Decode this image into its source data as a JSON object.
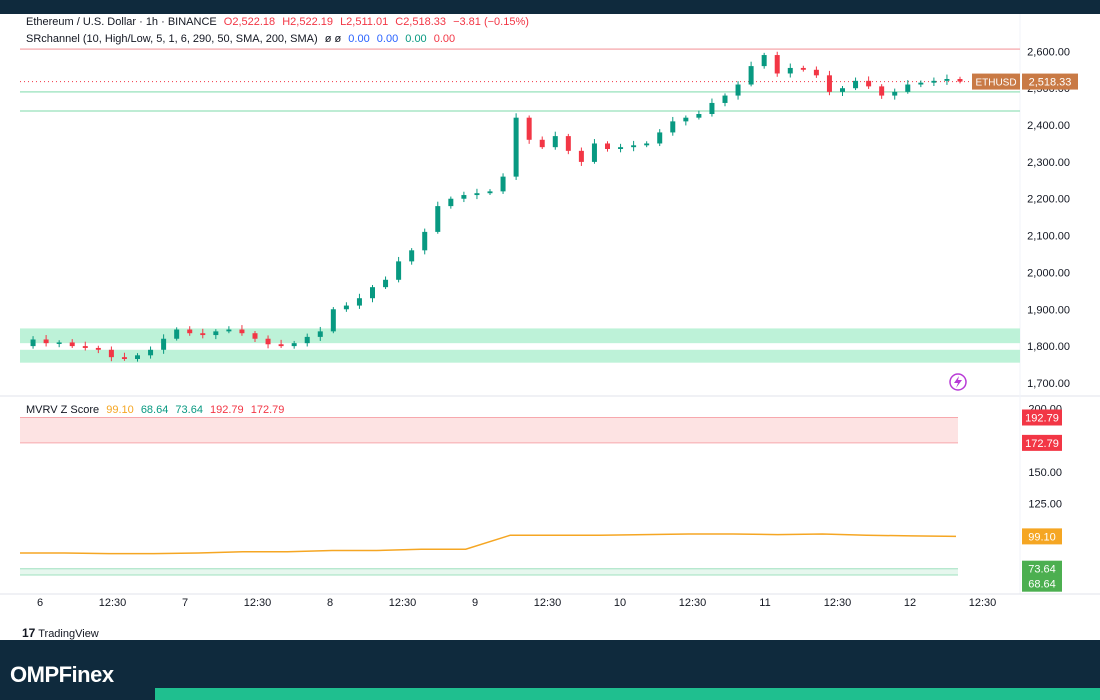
{
  "header": {
    "symbol_line": {
      "name": "Ethereum / U.S. Dollar · 1h · BINANCE",
      "open": "O2,522.18",
      "high": "H2,522.19",
      "low": "L2,511.01",
      "close": "C2,518.33",
      "change": "−3.81 (−0.15%)"
    },
    "indicator_line": {
      "name": "SRchannel (10, High/Low, 5, 1, 6, 290, 50, SMA, 200, SMA)",
      "flags": "ø ø",
      "v1": "0.00",
      "v2": "0.00",
      "v3": "0.00",
      "v4": "0.00"
    },
    "mvrv_line": {
      "name": "MVRV Z Score",
      "v1": "99.10",
      "v2": "68.64",
      "v3": "73.64",
      "v4": "192.79",
      "v5": "172.79"
    }
  },
  "brand": {
    "name": "OMPFinex"
  },
  "tradingview_label": "TradingView",
  "colors": {
    "up": "#089981",
    "down": "#f23645",
    "support_zone": "#bdf2d8",
    "resistance_zone": "#fde3e3",
    "mvrv_line": "#f5a623",
    "price_tag": "#c97a45",
    "green_tag": "#4caf50",
    "red_tag": "#f23645"
  },
  "chart_data": [
    {
      "type": "candlestick",
      "title": "Ethereum / U.S. Dollar · 1h · BINANCE",
      "ylim": [
        1670,
        2620
      ],
      "y_ticks": [
        "2,600.00",
        "2,500.00",
        "2,400.00",
        "2,300.00",
        "2,200.00",
        "2,100.00",
        "2,000.00",
        "1,900.00",
        "1,800.00",
        "1,700.00"
      ],
      "y_tick_values": [
        2600,
        2500,
        2400,
        2300,
        2200,
        2100,
        2000,
        1900,
        1800,
        1700
      ],
      "x_ticks": [
        "6",
        "12:30",
        "7",
        "12:30",
        "8",
        "12:30",
        "9",
        "12:30",
        "10",
        "12:30",
        "11",
        "12:30",
        "12",
        "12:30"
      ],
      "last_price_label": "ETHUSD",
      "last_price": "2,518.33",
      "levels": [
        {
          "kind": "resistance",
          "value": 2606
        },
        {
          "kind": "support",
          "value": 2490
        },
        {
          "kind": "support",
          "value": 2438
        }
      ],
      "zones": [
        {
          "kind": "support",
          "from": 1808,
          "to": 1848
        },
        {
          "kind": "support",
          "from": 1755,
          "to": 1790
        }
      ],
      "close_path": [
        1800,
        1818,
        1808,
        1810,
        1800,
        1795,
        1790,
        1770,
        1765,
        1775,
        1790,
        1820,
        1845,
        1835,
        1830,
        1840,
        1845,
        1835,
        1820,
        1805,
        1800,
        1808,
        1825,
        1840,
        1900,
        1910,
        1930,
        1960,
        1980,
        2030,
        2060,
        2110,
        2180,
        2200,
        2210,
        2215,
        2220,
        2260,
        2420,
        2360,
        2340,
        2370,
        2330,
        2300,
        2350,
        2335,
        2340,
        2345,
        2350,
        2380,
        2410,
        2420,
        2430,
        2460,
        2480,
        2510,
        2560,
        2590,
        2540,
        2555,
        2550,
        2535,
        2490,
        2500,
        2520,
        2505,
        2480,
        2490,
        2510,
        2515,
        2520,
        2525,
        2518
      ]
    },
    {
      "type": "line",
      "title": "MVRV Z Score",
      "ylim": [
        60,
        205
      ],
      "y_ticks": [
        "200.00",
        "150.00",
        "125.00"
      ],
      "y_tick_values": [
        200,
        150,
        125
      ],
      "series": [
        {
          "name": "MVRV Z Score",
          "values": [
            86,
            86,
            85.5,
            85.5,
            86,
            87,
            87,
            88,
            88,
            89,
            89,
            100,
            100,
            100,
            100.5,
            101,
            101,
            100.5,
            101,
            100,
            99.5,
            99.1
          ]
        }
      ],
      "bands": [
        {
          "kind": "resistance",
          "from": 172.79,
          "to": 192.79
        },
        {
          "kind": "support",
          "from": 68.64,
          "to": 73.64
        }
      ],
      "value_labels": [
        {
          "text": "192.79",
          "value": 192.79,
          "color": "#f23645"
        },
        {
          "text": "172.79",
          "value": 172.79,
          "color": "#f23645"
        },
        {
          "text": "99.10",
          "value": 99.1,
          "color": "#f5a623"
        },
        {
          "text": "73.64",
          "value": 73.64,
          "color": "#4caf50"
        },
        {
          "text": "68.64",
          "value": 68.64,
          "color": "#4caf50"
        }
      ]
    }
  ]
}
